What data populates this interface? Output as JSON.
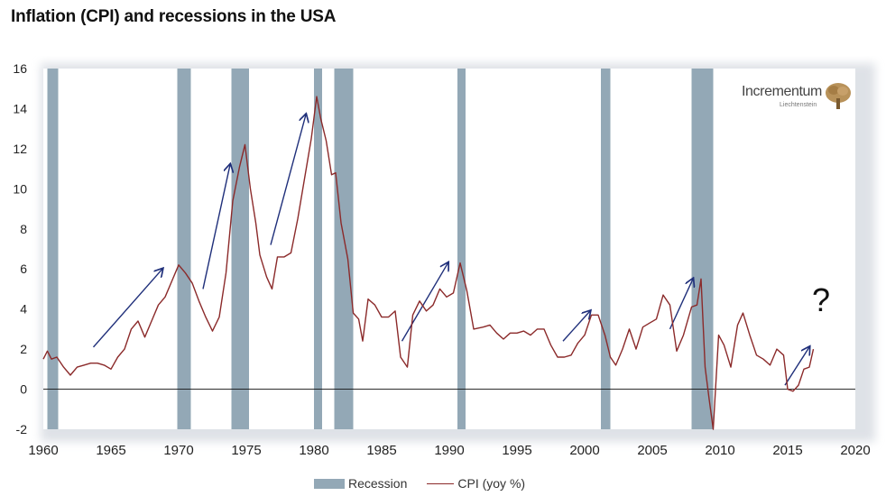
{
  "page": {
    "title": "Inflation (CPI) and recessions in the USA",
    "logo_name": "Incrementum",
    "logo_sub": "Liechtenstein",
    "question_mark": "?"
  },
  "chart_data": {
    "type": "line",
    "title": "Inflation (CPI) and recessions in the USA",
    "xlabel": "",
    "ylabel": "",
    "xlim": [
      1960,
      2020
    ],
    "ylim": [
      -2,
      16
    ],
    "x_ticks": [
      1960,
      1965,
      1970,
      1975,
      1980,
      1985,
      1990,
      1995,
      2000,
      2005,
      2010,
      2015,
      2020
    ],
    "y_ticks": [
      -2,
      0,
      2,
      4,
      6,
      8,
      10,
      12,
      14,
      16
    ],
    "legend": {
      "position": "bottom",
      "entries": [
        "Recession",
        "CPI (yoy %)"
      ]
    },
    "colors": {
      "recession": "#93a8b6",
      "cpi": "#8b2a2a",
      "arrows": "#1f2f7a"
    },
    "recessions": [
      {
        "start": 1960.3,
        "end": 1961.1
      },
      {
        "start": 1969.9,
        "end": 1970.9
      },
      {
        "start": 1973.9,
        "end": 1975.2
      },
      {
        "start": 1980.0,
        "end": 1980.6
      },
      {
        "start": 1981.5,
        "end": 1982.9
      },
      {
        "start": 1990.6,
        "end": 1991.2
      },
      {
        "start": 2001.2,
        "end": 2001.9
      },
      {
        "start": 2007.9,
        "end": 2009.5
      }
    ],
    "series": [
      {
        "name": "CPI (yoy %)",
        "points": [
          [
            1960.0,
            1.5
          ],
          [
            1960.3,
            1.9
          ],
          [
            1960.6,
            1.5
          ],
          [
            1961.0,
            1.6
          ],
          [
            1961.5,
            1.1
          ],
          [
            1962.0,
            0.7
          ],
          [
            1962.5,
            1.1
          ],
          [
            1963.0,
            1.2
          ],
          [
            1963.5,
            1.3
          ],
          [
            1964.0,
            1.3
          ],
          [
            1964.5,
            1.2
          ],
          [
            1965.0,
            1.0
          ],
          [
            1965.5,
            1.6
          ],
          [
            1966.0,
            2.0
          ],
          [
            1966.5,
            3.0
          ],
          [
            1967.0,
            3.4
          ],
          [
            1967.5,
            2.6
          ],
          [
            1968.0,
            3.4
          ],
          [
            1968.5,
            4.2
          ],
          [
            1969.0,
            4.6
          ],
          [
            1969.5,
            5.4
          ],
          [
            1970.0,
            6.2
          ],
          [
            1970.5,
            5.8
          ],
          [
            1971.0,
            5.3
          ],
          [
            1971.5,
            4.4
          ],
          [
            1972.0,
            3.6
          ],
          [
            1972.5,
            2.9
          ],
          [
            1973.0,
            3.6
          ],
          [
            1973.5,
            5.8
          ],
          [
            1974.0,
            9.4
          ],
          [
            1974.5,
            11.1
          ],
          [
            1974.9,
            12.2
          ],
          [
            1975.3,
            10.0
          ],
          [
            1975.7,
            8.3
          ],
          [
            1976.0,
            6.7
          ],
          [
            1976.5,
            5.6
          ],
          [
            1976.9,
            5.0
          ],
          [
            1977.3,
            6.6
          ],
          [
            1977.8,
            6.6
          ],
          [
            1978.3,
            6.8
          ],
          [
            1978.8,
            8.5
          ],
          [
            1979.3,
            10.5
          ],
          [
            1979.8,
            12.5
          ],
          [
            1980.2,
            14.6
          ],
          [
            1980.5,
            13.5
          ],
          [
            1980.9,
            12.4
          ],
          [
            1981.3,
            10.7
          ],
          [
            1981.6,
            10.8
          ],
          [
            1982.0,
            8.3
          ],
          [
            1982.5,
            6.5
          ],
          [
            1982.9,
            3.8
          ],
          [
            1983.3,
            3.5
          ],
          [
            1983.6,
            2.4
          ],
          [
            1984.0,
            4.5
          ],
          [
            1984.5,
            4.2
          ],
          [
            1985.0,
            3.6
          ],
          [
            1985.5,
            3.6
          ],
          [
            1986.0,
            3.9
          ],
          [
            1986.4,
            1.6
          ],
          [
            1986.9,
            1.1
          ],
          [
            1987.3,
            3.7
          ],
          [
            1987.8,
            4.4
          ],
          [
            1988.3,
            3.9
          ],
          [
            1988.8,
            4.2
          ],
          [
            1989.3,
            5.0
          ],
          [
            1989.8,
            4.6
          ],
          [
            1990.3,
            4.8
          ],
          [
            1990.8,
            6.3
          ],
          [
            1991.3,
            4.9
          ],
          [
            1991.8,
            3.0
          ],
          [
            1992.5,
            3.1
          ],
          [
            1993.0,
            3.2
          ],
          [
            1993.5,
            2.8
          ],
          [
            1994.0,
            2.5
          ],
          [
            1994.5,
            2.8
          ],
          [
            1995.0,
            2.8
          ],
          [
            1995.5,
            2.9
          ],
          [
            1996.0,
            2.7
          ],
          [
            1996.5,
            3.0
          ],
          [
            1997.0,
            3.0
          ],
          [
            1997.5,
            2.2
          ],
          [
            1998.0,
            1.6
          ],
          [
            1998.5,
            1.6
          ],
          [
            1999.0,
            1.7
          ],
          [
            1999.5,
            2.3
          ],
          [
            2000.0,
            2.7
          ],
          [
            2000.5,
            3.7
          ],
          [
            2001.0,
            3.7
          ],
          [
            2001.5,
            2.7
          ],
          [
            2001.9,
            1.6
          ],
          [
            2002.3,
            1.2
          ],
          [
            2002.8,
            2.0
          ],
          [
            2003.3,
            3.0
          ],
          [
            2003.8,
            2.0
          ],
          [
            2004.3,
            3.1
          ],
          [
            2004.8,
            3.3
          ],
          [
            2005.3,
            3.5
          ],
          [
            2005.8,
            4.7
          ],
          [
            2006.3,
            4.2
          ],
          [
            2006.8,
            1.9
          ],
          [
            2007.3,
            2.7
          ],
          [
            2007.9,
            4.1
          ],
          [
            2008.3,
            4.2
          ],
          [
            2008.6,
            5.5
          ],
          [
            2008.9,
            1.1
          ],
          [
            2009.2,
            -0.5
          ],
          [
            2009.5,
            -2.0
          ],
          [
            2009.9,
            2.7
          ],
          [
            2010.3,
            2.2
          ],
          [
            2010.8,
            1.1
          ],
          [
            2011.3,
            3.2
          ],
          [
            2011.7,
            3.8
          ],
          [
            2012.2,
            2.7
          ],
          [
            2012.7,
            1.7
          ],
          [
            2013.2,
            1.5
          ],
          [
            2013.7,
            1.2
          ],
          [
            2014.2,
            2.0
          ],
          [
            2014.7,
            1.7
          ],
          [
            2015.0,
            0.0
          ],
          [
            2015.4,
            -0.1
          ],
          [
            2015.8,
            0.2
          ],
          [
            2016.2,
            1.0
          ],
          [
            2016.6,
            1.1
          ],
          [
            2016.9,
            2.0
          ]
        ]
      }
    ],
    "arrows": [
      {
        "x1": 1963.7,
        "y1": 2.1,
        "x2": 1968.8,
        "y2": 6.0
      },
      {
        "x1": 1971.8,
        "y1": 5.0,
        "x2": 1973.8,
        "y2": 11.2
      },
      {
        "x1": 1976.8,
        "y1": 7.2,
        "x2": 1979.4,
        "y2": 13.7
      },
      {
        "x1": 1986.5,
        "y1": 2.4,
        "x2": 1989.9,
        "y2": 6.3
      },
      {
        "x1": 1998.4,
        "y1": 2.4,
        "x2": 2000.4,
        "y2": 3.9
      },
      {
        "x1": 2006.3,
        "y1": 3.0,
        "x2": 2008.0,
        "y2": 5.5
      },
      {
        "x1": 2014.8,
        "y1": 0.2,
        "x2": 2016.6,
        "y2": 2.1
      }
    ]
  }
}
